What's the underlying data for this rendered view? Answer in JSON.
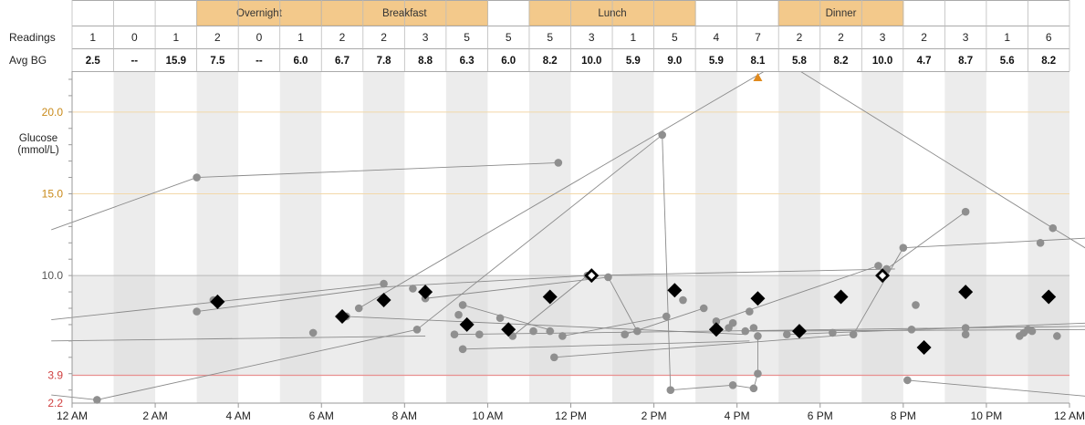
{
  "chart_data": {
    "type": "scatter",
    "title": "",
    "ylabel": "Glucose\n(mmol/L)",
    "ylabel_lines": [
      "Glucose",
      "(mmol/L)"
    ],
    "ylim": [
      2.2,
      22.5
    ],
    "xlim": [
      0,
      24
    ],
    "y_ticks": [
      {
        "value": 2.2,
        "label": "2.2"
      },
      {
        "value": 3.9,
        "label": "3.9"
      },
      {
        "value": 10.0,
        "label": "10.0"
      },
      {
        "value": 15.0,
        "label": "15.0"
      },
      {
        "value": 20.0,
        "label": "20.0"
      }
    ],
    "x_ticks": [
      {
        "hour": 0,
        "label": "12 AM"
      },
      {
        "hour": 2,
        "label": "2 AM"
      },
      {
        "hour": 4,
        "label": "4 AM"
      },
      {
        "hour": 6,
        "label": "6 AM"
      },
      {
        "hour": 8,
        "label": "8 AM"
      },
      {
        "hour": 10,
        "label": "10 AM"
      },
      {
        "hour": 12,
        "label": "12 PM"
      },
      {
        "hour": 14,
        "label": "2 PM"
      },
      {
        "hour": 16,
        "label": "4 PM"
      },
      {
        "hour": 18,
        "label": "6 PM"
      },
      {
        "hour": 20,
        "label": "8 PM"
      },
      {
        "hour": 22,
        "label": "10 PM"
      },
      {
        "hour": 24,
        "label": "12 AM"
      }
    ],
    "target_range": [
      3.9,
      10.0
    ],
    "low_line": 3.9,
    "meal_periods": [
      {
        "label": "Overnight",
        "start": 3,
        "end": 6
      },
      {
        "label": "Breakfast",
        "start": 6,
        "end": 10
      },
      {
        "label": "Lunch",
        "start": 11,
        "end": 15
      },
      {
        "label": "Dinner",
        "start": 17,
        "end": 20
      }
    ],
    "row_labels": {
      "readings": "Readings",
      "avg": "Avg BG"
    },
    "readings": [
      "1",
      "0",
      "1",
      "2",
      "0",
      "1",
      "2",
      "2",
      "3",
      "5",
      "5",
      "5",
      "3",
      "1",
      "5",
      "4",
      "7",
      "2",
      "2",
      "3",
      "2",
      "3",
      "1",
      "6"
    ],
    "avg_bg": [
      "2.5",
      "--",
      "15.9",
      "7.5",
      "--",
      "6.0",
      "6.7",
      "7.8",
      "8.8",
      "6.3",
      "6.0",
      "8.2",
      "10.0",
      "5.9",
      "9.0",
      "5.9",
      "8.1",
      "5.8",
      "8.2",
      "10.0",
      "4.7",
      "8.7",
      "5.6",
      "8.2"
    ],
    "above_range_marker_hour": 16.5,
    "readings_points": [
      [
        0.6,
        2.4
      ],
      [
        3.0,
        16.0
      ],
      [
        3.4,
        8.5
      ],
      [
        3.0,
        7.8
      ],
      [
        5.8,
        6.5
      ],
      [
        6.6,
        7.5
      ],
      [
        6.9,
        8.0
      ],
      [
        7.5,
        9.5
      ],
      [
        8.2,
        9.2
      ],
      [
        8.5,
        8.6
      ],
      [
        8.3,
        6.7
      ],
      [
        9.3,
        7.6
      ],
      [
        9.4,
        8.2
      ],
      [
        9.2,
        6.4
      ],
      [
        9.4,
        5.5
      ],
      [
        9.8,
        6.4
      ],
      [
        10.3,
        7.4
      ],
      [
        10.6,
        6.3
      ],
      [
        11.1,
        6.6
      ],
      [
        11.5,
        6.6
      ],
      [
        11.6,
        5.0
      ],
      [
        11.7,
        16.9
      ],
      [
        11.8,
        6.3
      ],
      [
        12.4,
        10.0
      ],
      [
        12.9,
        9.9
      ],
      [
        13.3,
        6.4
      ],
      [
        13.6,
        6.6
      ],
      [
        14.2,
        18.6
      ],
      [
        14.3,
        7.5
      ],
      [
        14.4,
        3.0
      ],
      [
        14.7,
        8.5
      ],
      [
        15.2,
        8.0
      ],
      [
        15.5,
        7.2
      ],
      [
        15.9,
        7.1
      ],
      [
        15.9,
        3.3
      ],
      [
        15.8,
        6.8
      ],
      [
        16.2,
        6.6
      ],
      [
        16.3,
        7.8
      ],
      [
        16.4,
        6.8
      ],
      [
        16.5,
        6.3
      ],
      [
        16.4,
        3.1
      ],
      [
        16.5,
        4.0
      ],
      [
        17.2,
        6.4
      ],
      [
        18.3,
        6.5
      ],
      [
        18.8,
        6.4
      ],
      [
        19.4,
        10.6
      ],
      [
        19.6,
        10.4
      ],
      [
        20.3,
        8.2
      ],
      [
        20.0,
        11.7
      ],
      [
        20.1,
        3.6
      ],
      [
        20.2,
        6.7
      ],
      [
        21.5,
        13.9
      ],
      [
        21.5,
        6.8
      ],
      [
        21.5,
        6.4
      ],
      [
        22.8,
        6.3
      ],
      [
        22.9,
        6.5
      ],
      [
        23.1,
        6.6
      ],
      [
        23.3,
        12.0
      ],
      [
        23.6,
        12.9
      ],
      [
        23.7,
        6.3
      ],
      [
        23.0,
        6.7
      ]
    ],
    "avg_points": [
      {
        "hour": 3.5,
        "value": 8.4,
        "hollow": false
      },
      {
        "hour": 6.5,
        "value": 7.5,
        "hollow": false
      },
      {
        "hour": 7.5,
        "value": 8.5,
        "hollow": false
      },
      {
        "hour": 8.5,
        "value": 9.0,
        "hollow": false
      },
      {
        "hour": 9.5,
        "value": 7.0,
        "hollow": false
      },
      {
        "hour": 10.5,
        "value": 6.7,
        "hollow": false
      },
      {
        "hour": 11.5,
        "value": 8.7,
        "hollow": false
      },
      {
        "hour": 12.5,
        "value": 10.0,
        "hollow": true
      },
      {
        "hour": 14.5,
        "value": 9.1,
        "hollow": false
      },
      {
        "hour": 15.5,
        "value": 6.7,
        "hollow": false
      },
      {
        "hour": 16.5,
        "value": 8.6,
        "hollow": false
      },
      {
        "hour": 17.5,
        "value": 6.6,
        "hollow": false
      },
      {
        "hour": 18.5,
        "value": 8.7,
        "hollow": false
      },
      {
        "hour": 19.5,
        "value": 10.0,
        "hollow": true
      },
      {
        "hour": 20.5,
        "value": 5.6,
        "hollow": false
      },
      {
        "hour": 21.5,
        "value": 9.0,
        "hollow": false
      },
      {
        "hour": 23.5,
        "value": 8.7,
        "hollow": false
      }
    ],
    "connecting_lines": [
      [
        [
          -0.5,
          12.8
        ],
        [
          3.0,
          16.0
        ]
      ],
      [
        [
          3.0,
          16.0
        ],
        [
          11.7,
          16.9
        ]
      ],
      [
        [
          -0.5,
          2.7
        ],
        [
          0.6,
          2.4
        ]
      ],
      [
        [
          0.6,
          2.4
        ],
        [
          8.3,
          6.7
        ]
      ],
      [
        [
          8.3,
          6.7
        ],
        [
          14.2,
          18.6
        ]
      ],
      [
        [
          14.2,
          18.6
        ],
        [
          14.4,
          3.0
        ]
      ],
      [
        [
          14.4,
          3.0
        ],
        [
          15.9,
          3.3
        ]
      ],
      [
        [
          15.9,
          3.3
        ],
        [
          16.4,
          3.1
        ]
      ],
      [
        [
          16.4,
          3.1
        ],
        [
          16.5,
          4.0
        ]
      ],
      [
        [
          16.5,
          4.0
        ],
        [
          16.5,
          6.3
        ]
      ],
      [
        [
          6.9,
          8.0
        ],
        [
          17.0,
          23.0
        ]
      ],
      [
        [
          17.2,
          23.0
        ],
        [
          23.6,
          12.9
        ]
      ],
      [
        [
          23.6,
          12.9
        ],
        [
          24.5,
          11.5
        ]
      ],
      [
        [
          -0.5,
          7.3
        ],
        [
          7.5,
          9.5
        ]
      ],
      [
        [
          3.0,
          7.8
        ],
        [
          7.5,
          9.3
        ]
      ],
      [
        [
          7.5,
          9.3
        ],
        [
          12.4,
          10.0
        ]
      ],
      [
        [
          12.4,
          10.0
        ],
        [
          19.8,
          10.4
        ]
      ],
      [
        [
          8.5,
          8.6
        ],
        [
          12.9,
          9.9
        ]
      ],
      [
        [
          12.9,
          9.9
        ],
        [
          13.6,
          6.6
        ]
      ],
      [
        [
          -0.5,
          6.0
        ],
        [
          8.5,
          6.3
        ]
      ],
      [
        [
          9.4,
          8.2
        ],
        [
          11.6,
          6.6
        ]
      ],
      [
        [
          10.6,
          6.3
        ],
        [
          12.4,
          10.0
        ]
      ],
      [
        [
          9.2,
          6.4
        ],
        [
          24.5,
          6.9
        ]
      ],
      [
        [
          9.4,
          5.5
        ],
        [
          16.3,
          6.0
        ]
      ],
      [
        [
          11.8,
          6.3
        ],
        [
          14.3,
          7.5
        ]
      ],
      [
        [
          11.6,
          5.0
        ],
        [
          18.8,
          6.4
        ]
      ],
      [
        [
          18.8,
          6.4
        ],
        [
          20.0,
          11.7
        ]
      ],
      [
        [
          20.0,
          11.7
        ],
        [
          24.5,
          12.3
        ]
      ],
      [
        [
          15.5,
          7.2
        ],
        [
          19.4,
          10.6
        ]
      ],
      [
        [
          16.2,
          6.6
        ],
        [
          24.5,
          6.7
        ]
      ],
      [
        [
          19.6,
          10.4
        ],
        [
          21.5,
          13.9
        ]
      ],
      [
        [
          20.1,
          3.6
        ],
        [
          24.5,
          2.6
        ]
      ],
      [
        [
          6.6,
          7.5
        ],
        [
          16.2,
          6.4
        ]
      ],
      [
        [
          17.2,
          6.4
        ],
        [
          24.5,
          7.1
        ]
      ],
      [
        [
          13.3,
          6.4
        ],
        [
          15.2,
          8.0
        ]
      ]
    ],
    "grid": true,
    "legend": "none"
  }
}
